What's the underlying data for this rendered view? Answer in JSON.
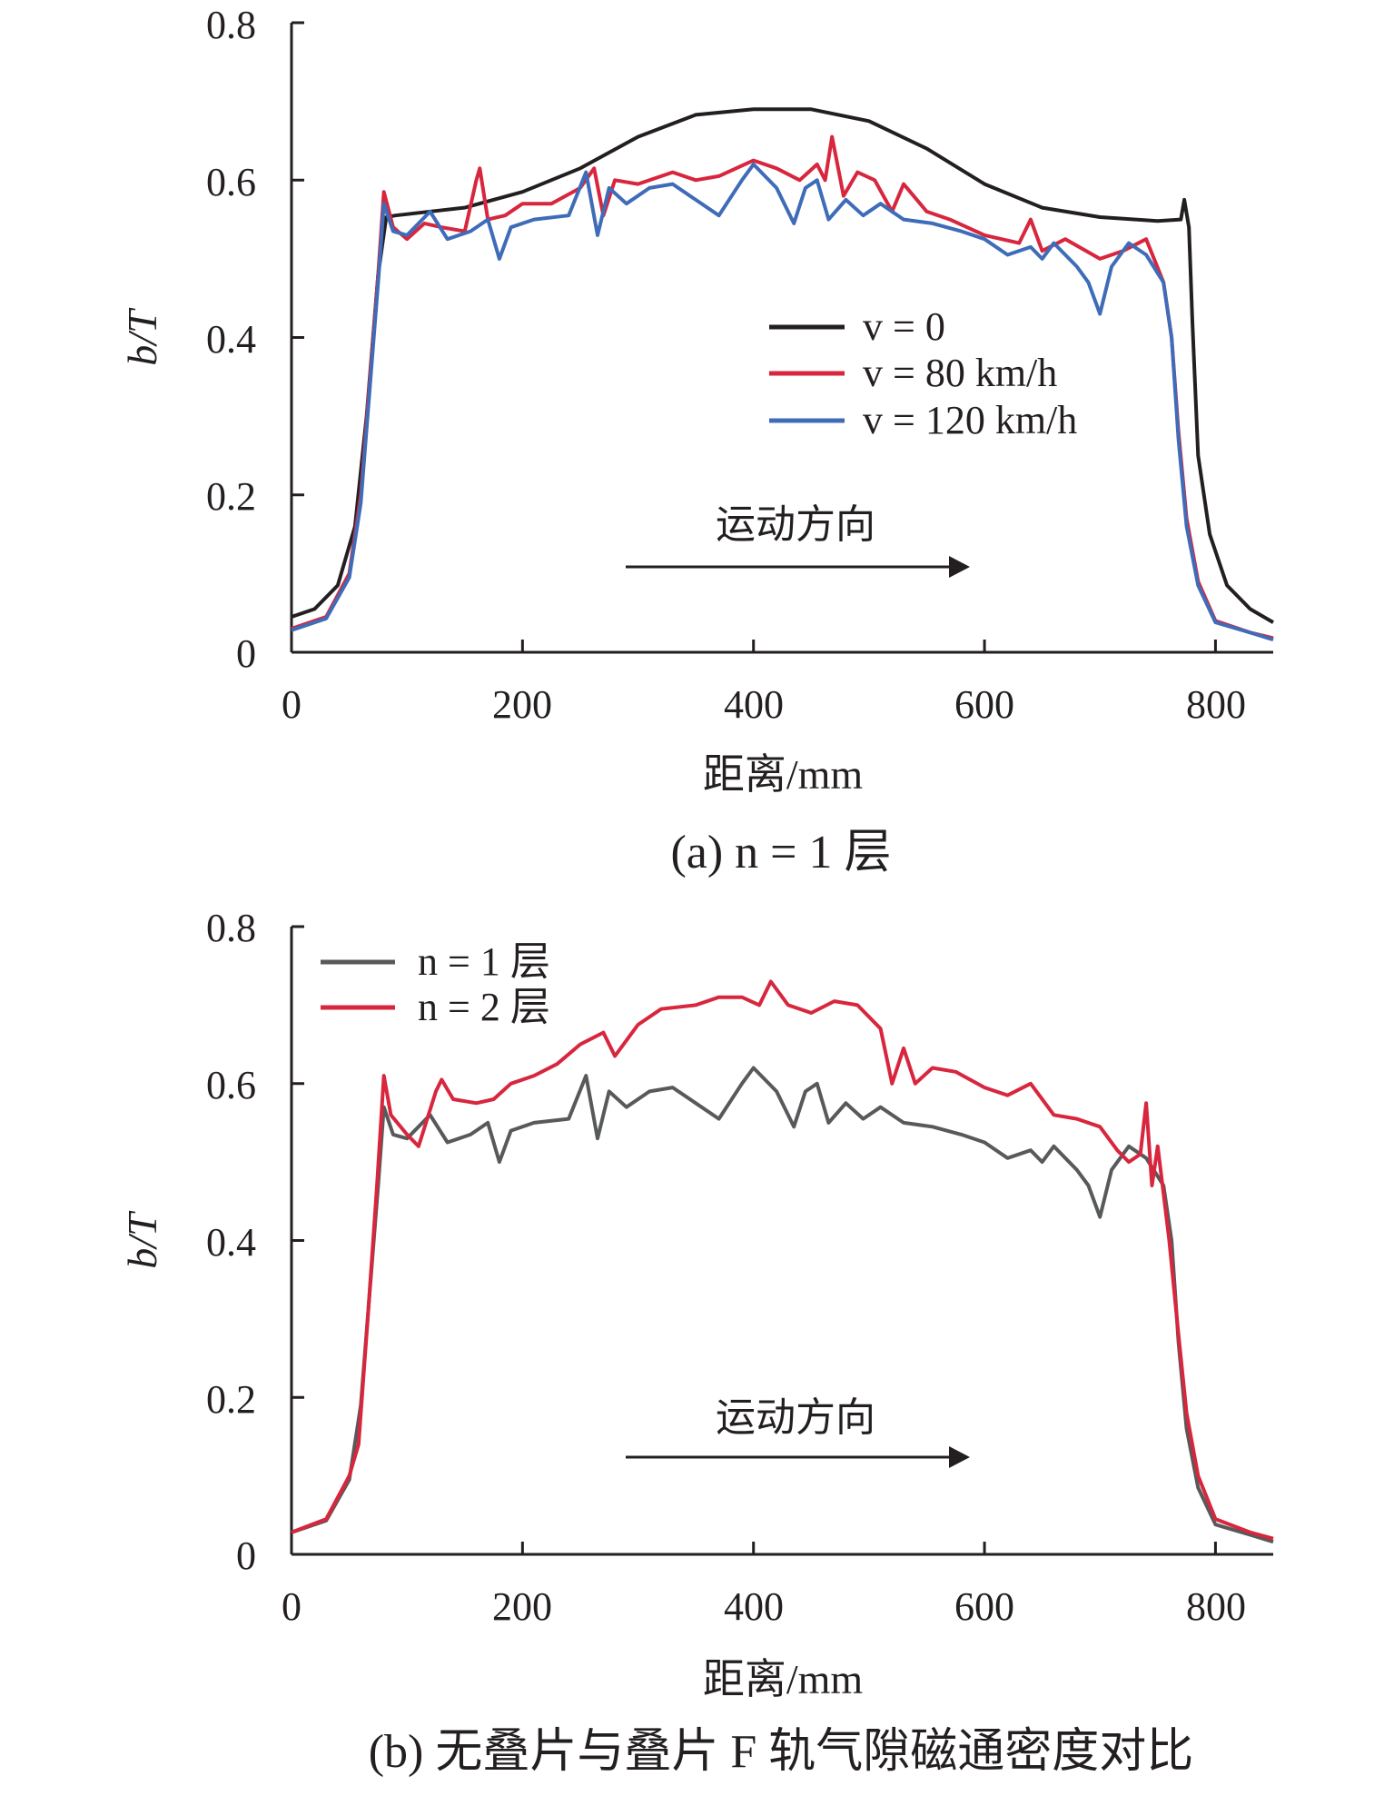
{
  "chart_data": [
    {
      "type": "line",
      "caption": "(a) n = 1 层",
      "xlabel": "距离/mm",
      "ylabel": "b/T",
      "xlim": [
        0,
        850
      ],
      "ylim": [
        0,
        0.8
      ],
      "x_ticks": [
        "0",
        "200",
        "400",
        "600",
        "800"
      ],
      "y_ticks": [
        "0",
        "0.2",
        "0.4",
        "0.6",
        "0.8"
      ],
      "annotation": "运动方向",
      "legend_placement": "center-right",
      "series": [
        {
          "name": "v = 0",
          "color": "#231f20",
          "points": [
            [
              0,
              0.045
            ],
            [
              20,
              0.055
            ],
            [
              40,
              0.085
            ],
            [
              55,
              0.16
            ],
            [
              65,
              0.3
            ],
            [
              75,
              0.48
            ],
            [
              82,
              0.553
            ],
            [
              90,
              0.555
            ],
            [
              150,
              0.565
            ],
            [
              200,
              0.585
            ],
            [
              250,
              0.615
            ],
            [
              300,
              0.655
            ],
            [
              350,
              0.683
            ],
            [
              400,
              0.69
            ],
            [
              450,
              0.69
            ],
            [
              500,
              0.675
            ],
            [
              550,
              0.64
            ],
            [
              600,
              0.595
            ],
            [
              650,
              0.565
            ],
            [
              700,
              0.553
            ],
            [
              750,
              0.548
            ],
            [
              770,
              0.55
            ],
            [
              773,
              0.575
            ],
            [
              777,
              0.54
            ],
            [
              780,
              0.42
            ],
            [
              785,
              0.25
            ],
            [
              795,
              0.15
            ],
            [
              810,
              0.085
            ],
            [
              830,
              0.055
            ],
            [
              850,
              0.038
            ]
          ]
        },
        {
          "name": "v = 80 km/h",
          "color": "#d7263d",
          "points": [
            [
              0,
              0.03
            ],
            [
              30,
              0.045
            ],
            [
              50,
              0.1
            ],
            [
              60,
              0.2
            ],
            [
              68,
              0.35
            ],
            [
              75,
              0.48
            ],
            [
              80,
              0.585
            ],
            [
              88,
              0.54
            ],
            [
              100,
              0.525
            ],
            [
              115,
              0.545
            ],
            [
              130,
              0.54
            ],
            [
              150,
              0.535
            ],
            [
              160,
              0.6
            ],
            [
              163,
              0.615
            ],
            [
              170,
              0.55
            ],
            [
              185,
              0.555
            ],
            [
              200,
              0.57
            ],
            [
              225,
              0.57
            ],
            [
              250,
              0.59
            ],
            [
              262,
              0.615
            ],
            [
              270,
              0.555
            ],
            [
              280,
              0.6
            ],
            [
              300,
              0.595
            ],
            [
              330,
              0.61
            ],
            [
              350,
              0.6
            ],
            [
              370,
              0.605
            ],
            [
              400,
              0.625
            ],
            [
              420,
              0.615
            ],
            [
              440,
              0.6
            ],
            [
              455,
              0.62
            ],
            [
              462,
              0.6
            ],
            [
              468,
              0.655
            ],
            [
              478,
              0.58
            ],
            [
              490,
              0.61
            ],
            [
              505,
              0.6
            ],
            [
              520,
              0.56
            ],
            [
              530,
              0.595
            ],
            [
              550,
              0.56
            ],
            [
              570,
              0.55
            ],
            [
              600,
              0.53
            ],
            [
              630,
              0.52
            ],
            [
              640,
              0.55
            ],
            [
              650,
              0.51
            ],
            [
              670,
              0.525
            ],
            [
              700,
              0.5
            ],
            [
              720,
              0.51
            ],
            [
              740,
              0.525
            ],
            [
              755,
              0.47
            ],
            [
              762,
              0.4
            ],
            [
              768,
              0.28
            ],
            [
              775,
              0.17
            ],
            [
              785,
              0.09
            ],
            [
              800,
              0.04
            ],
            [
              830,
              0.025
            ],
            [
              850,
              0.018
            ]
          ]
        },
        {
          "name": "v = 120 km/h",
          "color": "#3f6cb8",
          "points": [
            [
              0,
              0.028
            ],
            [
              30,
              0.043
            ],
            [
              50,
              0.095
            ],
            [
              60,
              0.19
            ],
            [
              68,
              0.34
            ],
            [
              75,
              0.47
            ],
            [
              80,
              0.57
            ],
            [
              88,
              0.535
            ],
            [
              100,
              0.53
            ],
            [
              120,
              0.56
            ],
            [
              135,
              0.525
            ],
            [
              155,
              0.535
            ],
            [
              170,
              0.55
            ],
            [
              180,
              0.5
            ],
            [
              190,
              0.54
            ],
            [
              210,
              0.55
            ],
            [
              240,
              0.555
            ],
            [
              255,
              0.61
            ],
            [
              265,
              0.53
            ],
            [
              275,
              0.59
            ],
            [
              290,
              0.57
            ],
            [
              310,
              0.59
            ],
            [
              330,
              0.595
            ],
            [
              350,
              0.575
            ],
            [
              370,
              0.555
            ],
            [
              390,
              0.6
            ],
            [
              400,
              0.62
            ],
            [
              420,
              0.59
            ],
            [
              435,
              0.545
            ],
            [
              445,
              0.59
            ],
            [
              455,
              0.6
            ],
            [
              465,
              0.55
            ],
            [
              480,
              0.575
            ],
            [
              495,
              0.555
            ],
            [
              510,
              0.57
            ],
            [
              530,
              0.55
            ],
            [
              555,
              0.545
            ],
            [
              580,
              0.535
            ],
            [
              600,
              0.525
            ],
            [
              620,
              0.505
            ],
            [
              640,
              0.515
            ],
            [
              650,
              0.5
            ],
            [
              660,
              0.52
            ],
            [
              680,
              0.49
            ],
            [
              690,
              0.47
            ],
            [
              700,
              0.43
            ],
            [
              710,
              0.49
            ],
            [
              725,
              0.52
            ],
            [
              740,
              0.505
            ],
            [
              755,
              0.47
            ],
            [
              762,
              0.4
            ],
            [
              768,
              0.27
            ],
            [
              775,
              0.16
            ],
            [
              785,
              0.085
            ],
            [
              800,
              0.038
            ],
            [
              830,
              0.025
            ],
            [
              850,
              0.016
            ]
          ]
        }
      ]
    },
    {
      "type": "line",
      "caption": "(b) 无叠片与叠片 F 轨气隙磁通密度对比",
      "xlabel": "距离/mm",
      "ylabel": "b/T",
      "xlim": [
        0,
        850
      ],
      "ylim": [
        0,
        0.8
      ],
      "x_ticks": [
        "0",
        "200",
        "400",
        "600",
        "800"
      ],
      "y_ticks": [
        "0",
        "0.2",
        "0.4",
        "0.6",
        "0.8"
      ],
      "annotation": "运动方向",
      "legend_placement": "top-left",
      "series": [
        {
          "name": "n = 1 层",
          "color": "#58595b",
          "points": [
            [
              0,
              0.028
            ],
            [
              30,
              0.043
            ],
            [
              50,
              0.095
            ],
            [
              60,
              0.19
            ],
            [
              68,
              0.34
            ],
            [
              75,
              0.47
            ],
            [
              80,
              0.57
            ],
            [
              88,
              0.535
            ],
            [
              100,
              0.53
            ],
            [
              120,
              0.56
            ],
            [
              135,
              0.525
            ],
            [
              155,
              0.535
            ],
            [
              170,
              0.55
            ],
            [
              180,
              0.5
            ],
            [
              190,
              0.54
            ],
            [
              210,
              0.55
            ],
            [
              240,
              0.555
            ],
            [
              255,
              0.61
            ],
            [
              265,
              0.53
            ],
            [
              275,
              0.59
            ],
            [
              290,
              0.57
            ],
            [
              310,
              0.59
            ],
            [
              330,
              0.595
            ],
            [
              350,
              0.575
            ],
            [
              370,
              0.555
            ],
            [
              390,
              0.6
            ],
            [
              400,
              0.62
            ],
            [
              420,
              0.59
            ],
            [
              435,
              0.545
            ],
            [
              445,
              0.59
            ],
            [
              455,
              0.6
            ],
            [
              465,
              0.55
            ],
            [
              480,
              0.575
            ],
            [
              495,
              0.555
            ],
            [
              510,
              0.57
            ],
            [
              530,
              0.55
            ],
            [
              555,
              0.545
            ],
            [
              580,
              0.535
            ],
            [
              600,
              0.525
            ],
            [
              620,
              0.505
            ],
            [
              640,
              0.515
            ],
            [
              650,
              0.5
            ],
            [
              660,
              0.52
            ],
            [
              680,
              0.49
            ],
            [
              690,
              0.47
            ],
            [
              700,
              0.43
            ],
            [
              710,
              0.49
            ],
            [
              725,
              0.52
            ],
            [
              740,
              0.505
            ],
            [
              755,
              0.47
            ],
            [
              762,
              0.4
            ],
            [
              768,
              0.27
            ],
            [
              775,
              0.16
            ],
            [
              785,
              0.085
            ],
            [
              800,
              0.038
            ],
            [
              830,
              0.025
            ],
            [
              850,
              0.016
            ]
          ]
        },
        {
          "name": "n = 2 层",
          "color": "#d7263d",
          "points": [
            [
              0,
              0.028
            ],
            [
              30,
              0.045
            ],
            [
              50,
              0.1
            ],
            [
              58,
              0.14
            ],
            [
              66,
              0.3
            ],
            [
              74,
              0.47
            ],
            [
              80,
              0.61
            ],
            [
              86,
              0.56
            ],
            [
              100,
              0.535
            ],
            [
              110,
              0.52
            ],
            [
              125,
              0.59
            ],
            [
              130,
              0.605
            ],
            [
              140,
              0.58
            ],
            [
              160,
              0.575
            ],
            [
              175,
              0.58
            ],
            [
              190,
              0.6
            ],
            [
              210,
              0.61
            ],
            [
              230,
              0.625
            ],
            [
              250,
              0.65
            ],
            [
              270,
              0.665
            ],
            [
              280,
              0.635
            ],
            [
              300,
              0.675
            ],
            [
              320,
              0.695
            ],
            [
              350,
              0.7
            ],
            [
              370,
              0.71
            ],
            [
              390,
              0.71
            ],
            [
              405,
              0.7
            ],
            [
              415,
              0.73
            ],
            [
              430,
              0.7
            ],
            [
              450,
              0.69
            ],
            [
              470,
              0.705
            ],
            [
              490,
              0.7
            ],
            [
              510,
              0.67
            ],
            [
              520,
              0.6
            ],
            [
              530,
              0.645
            ],
            [
              540,
              0.6
            ],
            [
              555,
              0.62
            ],
            [
              575,
              0.615
            ],
            [
              600,
              0.595
            ],
            [
              620,
              0.585
            ],
            [
              640,
              0.6
            ],
            [
              660,
              0.56
            ],
            [
              680,
              0.555
            ],
            [
              700,
              0.545
            ],
            [
              715,
              0.515
            ],
            [
              725,
              0.5
            ],
            [
              735,
              0.51
            ],
            [
              740,
              0.575
            ],
            [
              745,
              0.47
            ],
            [
              750,
              0.52
            ],
            [
              755,
              0.46
            ],
            [
              760,
              0.4
            ],
            [
              768,
              0.28
            ],
            [
              775,
              0.18
            ],
            [
              785,
              0.1
            ],
            [
              800,
              0.045
            ],
            [
              830,
              0.028
            ],
            [
              850,
              0.02
            ]
          ]
        }
      ]
    }
  ]
}
